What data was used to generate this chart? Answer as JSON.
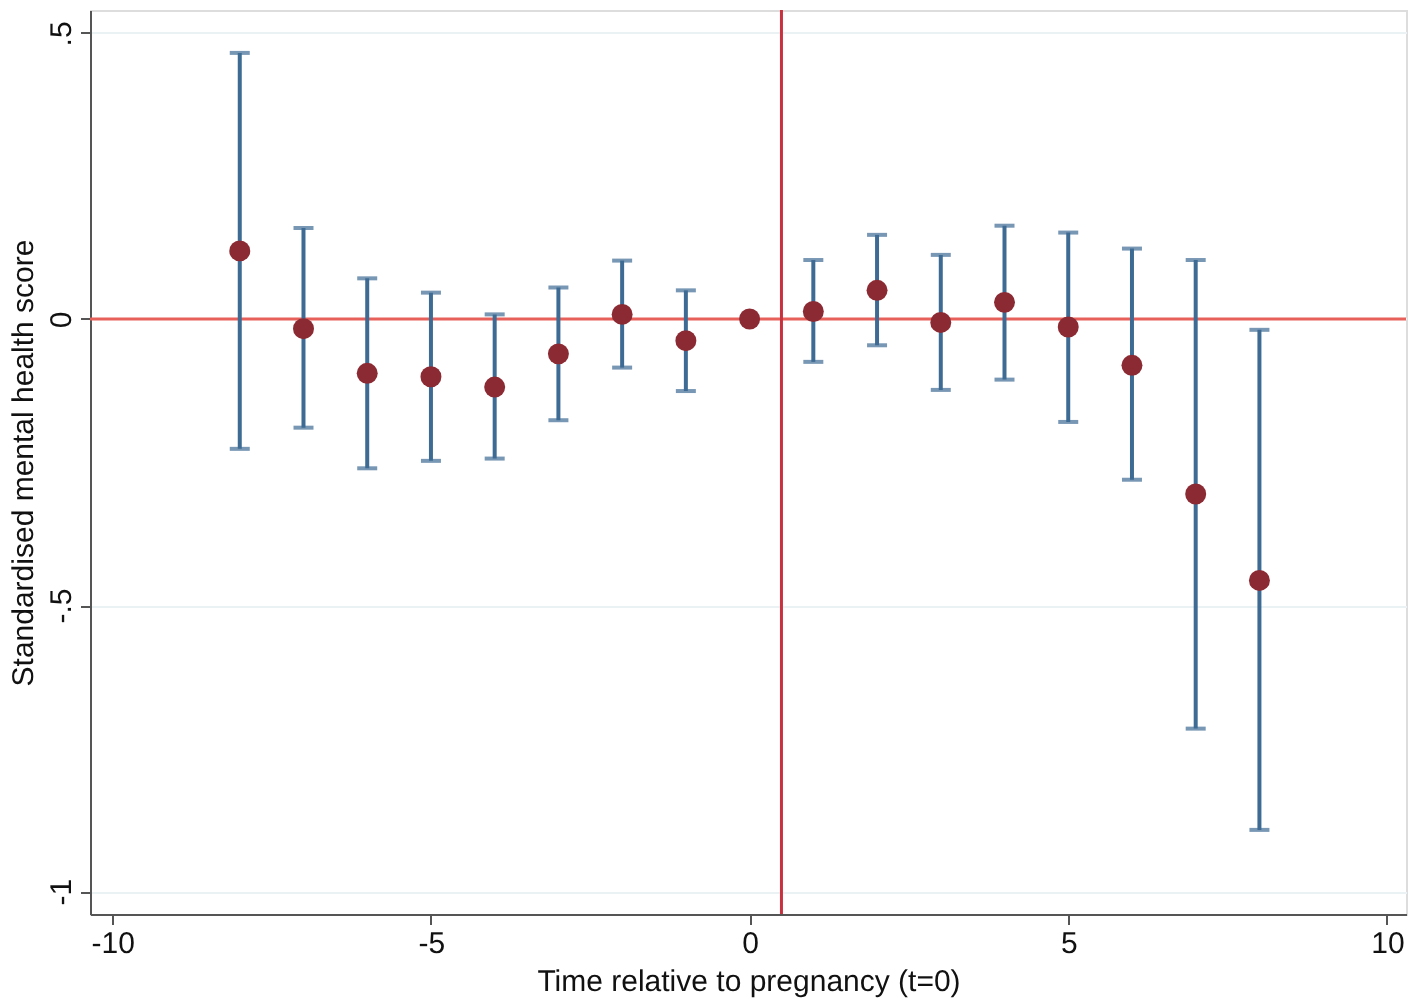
{
  "chart_data": {
    "type": "scatter",
    "xlabel": "Time relative to pregnancy (t=0)",
    "ylabel": "Standardised mental health score",
    "x": [
      -8,
      -7,
      -6,
      -5,
      -4,
      -3,
      -2,
      -1,
      0,
      1,
      2,
      3,
      4,
      5,
      6,
      7,
      8
    ],
    "series": [
      {
        "color": "#8b2a33",
        "values": [
          0.119,
          -0.017,
          -0.095,
          -0.101,
          -0.119,
          -0.061,
          0.008,
          -0.038,
          0,
          0.013,
          0.05,
          -0.006,
          0.029,
          -0.014,
          -0.081,
          -0.306,
          -0.457
        ],
        "errors": [
          [
            -0.227,
            0.465
          ],
          [
            -0.19,
            0.159
          ],
          [
            -0.261,
            0.071
          ],
          [
            -0.248,
            0.046
          ],
          [
            -0.244,
            0.008
          ],
          [
            -0.177,
            0.055
          ],
          [
            -0.085,
            0.102
          ],
          [
            -0.126,
            0.05
          ],
          null,
          [
            -0.075,
            0.103
          ],
          [
            -0.046,
            0.147
          ],
          [
            -0.124,
            0.112
          ],
          [
            -0.106,
            0.163
          ],
          [
            -0.18,
            0.151
          ],
          [
            -0.281,
            0.123
          ],
          [
            -0.716,
            0.103
          ],
          [
            -0.893,
            -0.019
          ]
        ]
      }
    ],
    "xlim": [
      -10.35,
      10.3
    ],
    "ylim": [
      -1.04,
      0.54
    ],
    "xticks": [
      -10,
      -5,
      0,
      5,
      10
    ],
    "yticks": [
      {
        "value": -1,
        "label": "-1"
      },
      {
        "value": -0.5,
        "label": "-.5"
      },
      {
        "value": 0,
        "label": "0"
      },
      {
        "value": 0.5,
        "label": ".5"
      }
    ],
    "grid": "y",
    "marker": "circle",
    "ref_lines": [
      {
        "axis": "y",
        "value": 0,
        "color": "#e8605a"
      },
      {
        "axis": "x",
        "value": 0.5,
        "color": "#c8313e"
      }
    ]
  }
}
